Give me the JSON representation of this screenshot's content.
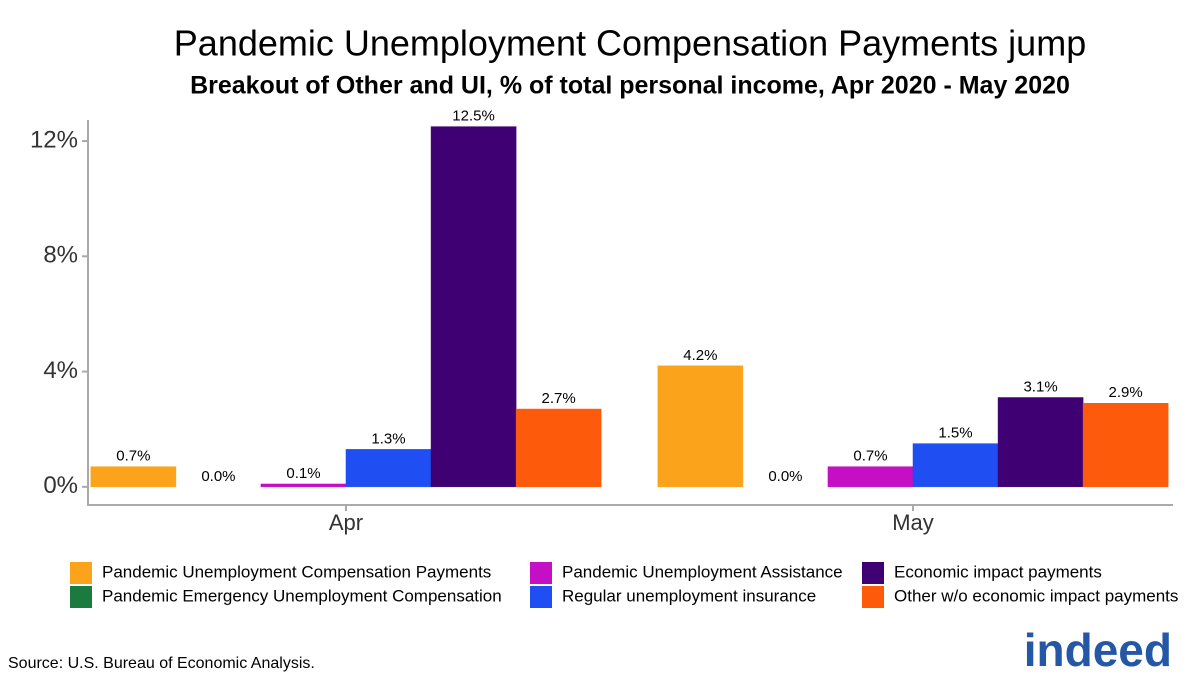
{
  "chart_data": {
    "type": "bar",
    "title": "Pandemic Unemployment Compensation Payments jump",
    "subtitle": "Breakout of Other and UI, % of total personal income, Apr 2020 - May 2020",
    "categories": [
      "Apr",
      "May"
    ],
    "series": [
      {
        "name": "Pandemic Unemployment Compensation Payments",
        "color": "#fba41b",
        "values": [
          0.7,
          4.2
        ],
        "value_labels": [
          "0.7%",
          "4.2%"
        ]
      },
      {
        "name": "Pandemic Emergency Unemployment Compensation",
        "color": "#1b7a3e",
        "values": [
          0.0,
          0.0
        ],
        "value_labels": [
          "0.0%",
          "0.0%"
        ]
      },
      {
        "name": "Pandemic Unemployment Assistance",
        "color": "#c40fc4",
        "values": [
          0.1,
          0.7
        ],
        "value_labels": [
          "0.1%",
          "0.7%"
        ]
      },
      {
        "name": "Regular unemployment insurance",
        "color": "#1f4ff2",
        "values": [
          1.3,
          1.5
        ],
        "value_labels": [
          "1.3%",
          "1.5%"
        ]
      },
      {
        "name": "Economic impact payments",
        "color": "#3e0072",
        "values": [
          12.5,
          3.1
        ],
        "value_labels": [
          "12.5%",
          "3.1%"
        ]
      },
      {
        "name": "Other w/o economic impact payments",
        "color": "#fe5a0b",
        "values": [
          2.7,
          2.9
        ],
        "value_labels": [
          "2.7%",
          "2.9%"
        ]
      }
    ],
    "ylim": [
      -0.63,
      12.73
    ],
    "yticks": [
      {
        "value": 0,
        "label": "0%"
      },
      {
        "value": 4,
        "label": "4%"
      },
      {
        "value": 8,
        "label": "8%"
      },
      {
        "value": 12,
        "label": "12%"
      }
    ],
    "grid": false,
    "legend": "bottom",
    "source": "Source: U.S. Bureau of Economic Analysis.",
    "logo": "indeed"
  }
}
